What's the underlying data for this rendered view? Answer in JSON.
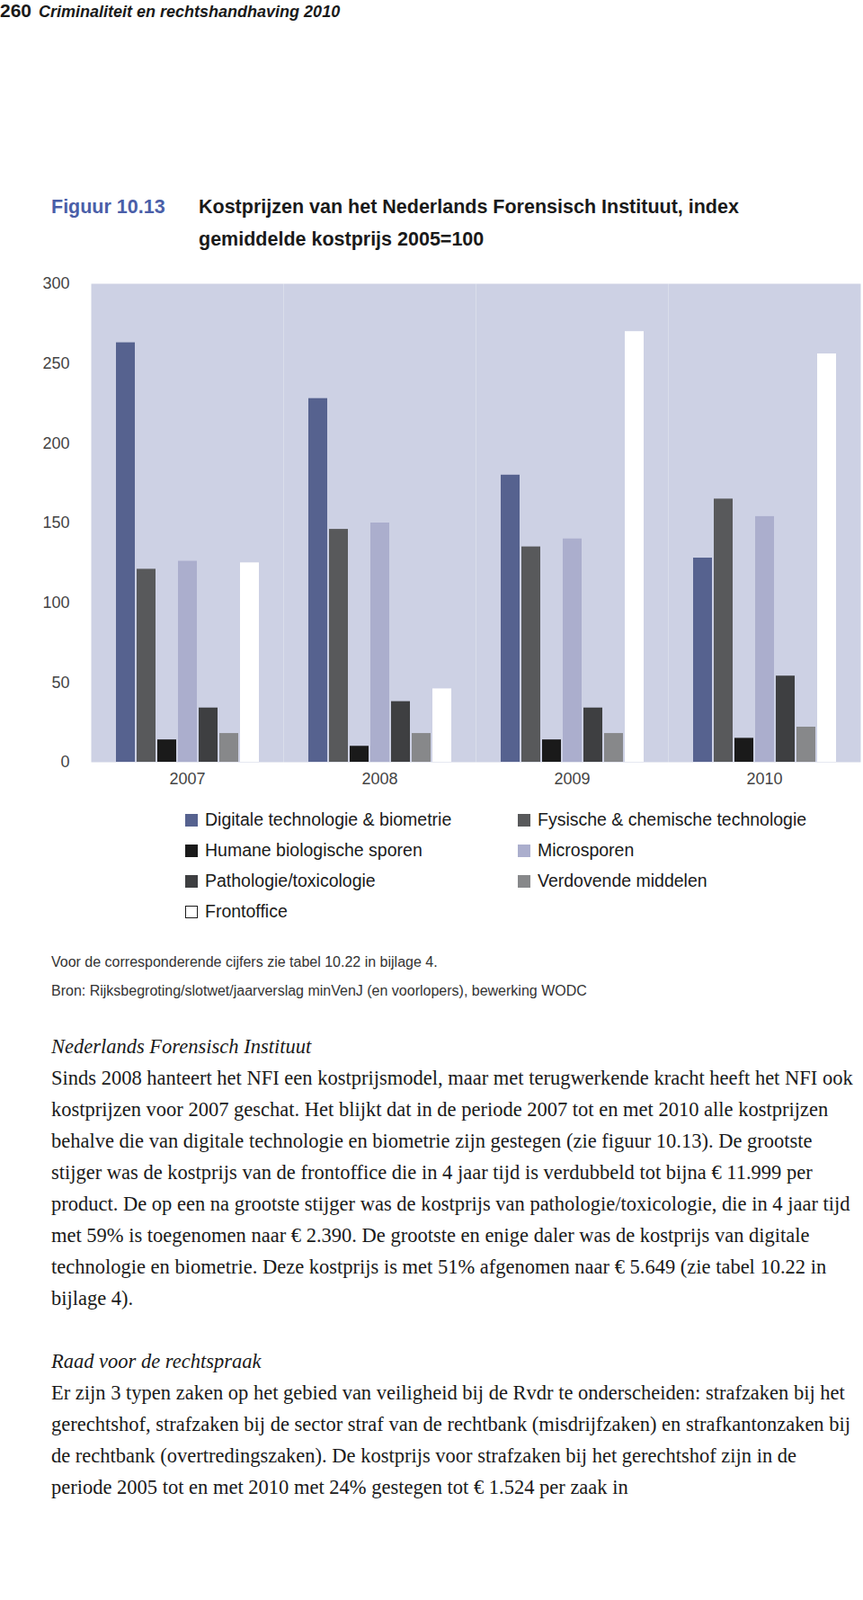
{
  "header": {
    "page": "260",
    "running_title": "Criminaliteit en rechtshandhaving 2010"
  },
  "figure_label": "Figuur 10.13",
  "chart_data": {
    "type": "bar",
    "title": "Kostprijzen van het Nederlands Forensisch Instituut, index gemiddelde kostprijs 2005=100",
    "categories": [
      "2007",
      "2008",
      "2009",
      "2010"
    ],
    "series": [
      {
        "name": "Digitale technologie & biometrie",
        "color": "#56628f",
        "values": [
          263,
          228,
          180,
          128
        ]
      },
      {
        "name": "Fysische & chemische technologie",
        "color": "#58595b",
        "values": [
          121,
          146,
          135,
          165
        ]
      },
      {
        "name": "Humane biologische sporen",
        "color": "#1a1a1a",
        "values": [
          14,
          10,
          14,
          15
        ]
      },
      {
        "name": "Microsporen",
        "color": "#abaecd",
        "values": [
          126,
          150,
          140,
          154
        ]
      },
      {
        "name": "Pathologie/toxicologie",
        "color": "#3e3f41",
        "values": [
          34,
          38,
          34,
          54
        ]
      },
      {
        "name": "Verdovende middelen",
        "color": "#87888a",
        "values": [
          18,
          18,
          18,
          22
        ]
      },
      {
        "name": "Frontoffice",
        "color": "#ffffff",
        "values": [
          125,
          46,
          270,
          256
        ]
      }
    ],
    "ylim": [
      0,
      300
    ],
    "yticks": [
      0,
      50,
      100,
      150,
      200,
      250,
      300
    ],
    "grid": false
  },
  "notes": [
    "Voor de corresponderende cijfers zie tabel 10.22 in bijlage 4.",
    "Bron: Rijksbegroting/slotwet/jaarverslag minVenJ (en voorlopers), bewerking WODC"
  ],
  "sections": [
    {
      "heading": "Nederlands Forensisch Instituut",
      "paragraphs": [
        "Sinds 2008 hanteert het NFI een kostprijsmodel, maar met terugwerkende kracht heeft het NFI ook kostprijzen voor 2007 geschat. Het blijkt dat in de periode 2007 tot en met 2010 alle kostprijzen behalve die van digitale technologie en biometrie zijn gestegen (zie figuur 10.13). De grootste stijger was de kostprijs van de frontoffice die in 4 jaar tijd is verdubbeld tot bijna € 11.999 per product. De op een na grootste stijger was de kostprijs van pathologie/toxicologie, die in 4 jaar tijd met 59% is toegenomen naar € 2.390. De grootste en enige daler was de kostprijs van digitale technologie en biometrie. Deze kostprijs is met 51% afgenomen naar € 5.649 (zie tabel 10.22 in bijlage 4)."
      ]
    },
    {
      "heading": "Raad voor de rechtspraak",
      "paragraphs": [
        "Er zijn 3 typen zaken op het gebied van veiligheid bij de Rvdr te onderscheiden: strafzaken bij het gerechtshof, strafzaken bij de sector straf van de rechtbank (misdrijfzaken) en strafkantonzaken bij de rechtbank (overtredingszaken). De kostprijs voor strafzaken bij het gerechtshof zijn in de periode 2005 tot en met 2010 met 24% gestegen tot € 1.524 per zaak in"
      ]
    }
  ]
}
